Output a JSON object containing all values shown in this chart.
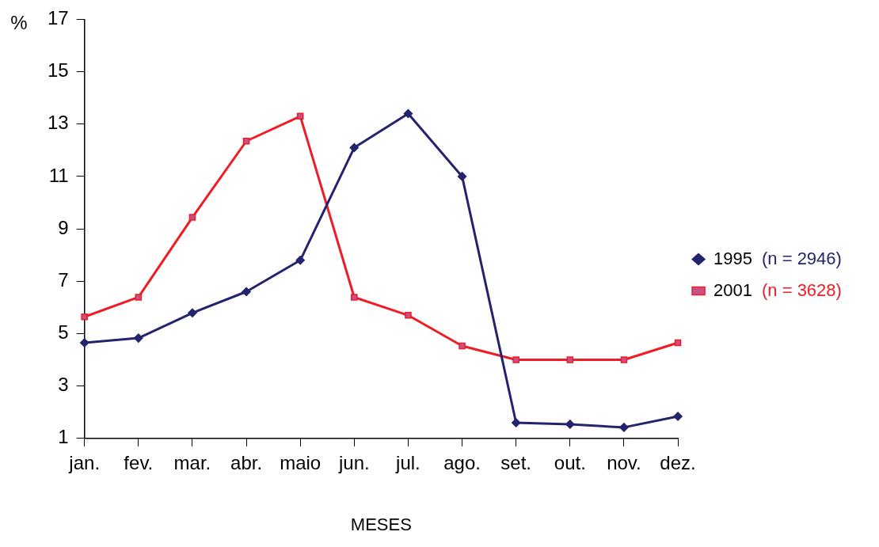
{
  "chart_data": {
    "type": "line",
    "xlabel": "MESES",
    "ylabel": "%",
    "categories": [
      "jan.",
      "fev.",
      "mar.",
      "abr.",
      "maio",
      "jun.",
      "jul.",
      "ago.",
      "set.",
      "out.",
      "nov.",
      "dez."
    ],
    "series": [
      {
        "name": "1995",
        "color": "#23236e",
        "marker": "diamond",
        "values": [
          4.65,
          4.83,
          5.79,
          6.6,
          7.8,
          12.1,
          13.4,
          11.0,
          1.6,
          1.54,
          1.42,
          1.84
        ]
      },
      {
        "name": "2001",
        "color": "#ee1c25",
        "marker": "square",
        "values": [
          5.64,
          6.39,
          9.44,
          12.35,
          13.3,
          6.39,
          5.7,
          4.53,
          4.0,
          4.0,
          4.0,
          4.65
        ]
      }
    ],
    "ylim": [
      1,
      17
    ],
    "yticks": [
      1,
      3,
      5,
      7,
      9,
      11,
      13,
      15,
      17
    ],
    "annotations": [
      "(n = 2946)",
      "(n = 3628)"
    ],
    "grid": false,
    "legend": "right",
    "line_style": "solid"
  }
}
